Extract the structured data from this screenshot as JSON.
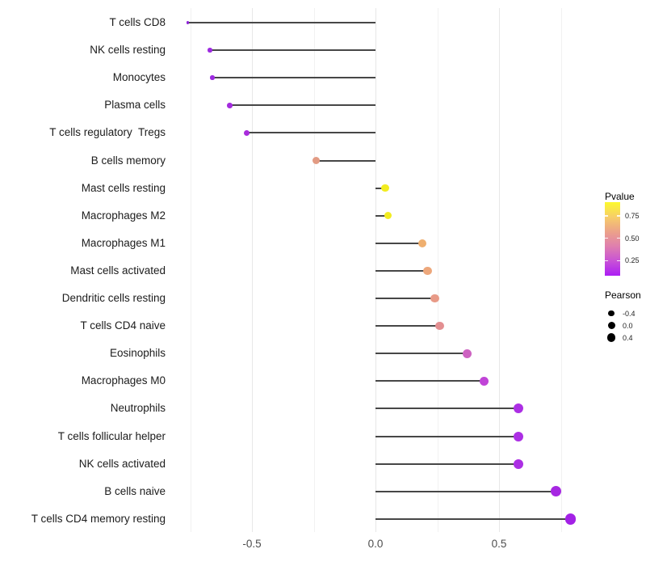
{
  "chart_data": {
    "type": "lollipop",
    "title": "",
    "xlabel": "",
    "ylabel": "",
    "x_axis": {
      "tick_labels": [
        "-0.5",
        "0.0",
        "0.5"
      ],
      "tick_values": [
        -0.5,
        0.0,
        0.5
      ],
      "gridline_values": [
        -0.75,
        -0.5,
        -0.25,
        0.0,
        0.25,
        0.5,
        0.75
      ],
      "range": [
        -0.81,
        0.83
      ]
    },
    "categories": [
      "T cells CD8",
      "NK cells resting",
      "Monocytes",
      "Plasma cells",
      "T cells regulatory  Tregs",
      "B cells memory",
      "Mast cells resting",
      "Macrophages M2",
      "Macrophages M1",
      "Mast cells activated",
      "Dendritic cells resting",
      "T cells CD4 naive",
      "Eosinophils",
      "Macrophages M0",
      "Neutrophils",
      "T cells follicular helper",
      "NK cells activated",
      "B cells naive",
      "T cells CD4 memory resting"
    ],
    "series": [
      {
        "name": "Pearson correlation",
        "values": [
          -0.76,
          -0.67,
          -0.66,
          -0.59,
          -0.52,
          -0.24,
          0.04,
          0.05,
          0.19,
          0.21,
          0.24,
          0.26,
          0.37,
          0.44,
          0.58,
          0.58,
          0.58,
          0.73,
          0.79
        ]
      }
    ],
    "points": [
      {
        "label": "T cells CD8",
        "pearson": -0.76,
        "dot_color": "#8E24D8",
        "dot_size": 3.5
      },
      {
        "label": "NK cells resting",
        "pearson": -0.67,
        "dot_color": "#9D2BE0",
        "dot_size": 5.5
      },
      {
        "label": "Monocytes",
        "pearson": -0.66,
        "dot_color": "#9D2BE0",
        "dot_size": 5.5
      },
      {
        "label": "Plasma cells",
        "pearson": -0.59,
        "dot_color": "#A42BDE",
        "dot_size": 6.5
      },
      {
        "label": "T cells regulatory  Tregs",
        "pearson": -0.52,
        "dot_color": "#A92BDC",
        "dot_size": 7
      },
      {
        "label": "B cells memory",
        "pearson": -0.24,
        "dot_color": "#E29B83",
        "dot_size": 9
      },
      {
        "label": "Mast cells resting",
        "pearson": 0.04,
        "dot_color": "#F2EC20",
        "dot_size": 9.5
      },
      {
        "label": "Macrophages M2",
        "pearson": 0.05,
        "dot_color": "#F2EC20",
        "dot_size": 9.5
      },
      {
        "label": "Macrophages M1",
        "pearson": 0.19,
        "dot_color": "#EFAF6F",
        "dot_size": 10
      },
      {
        "label": "Mast cells activated",
        "pearson": 0.21,
        "dot_color": "#EDA77B",
        "dot_size": 10.5
      },
      {
        "label": "Dendritic cells resting",
        "pearson": 0.24,
        "dot_color": "#E89A87",
        "dot_size": 10.5
      },
      {
        "label": "T cells CD4 naive",
        "pearson": 0.26,
        "dot_color": "#E38F91",
        "dot_size": 10.5
      },
      {
        "label": "Eosinophils",
        "pearson": 0.37,
        "dot_color": "#CD62C1",
        "dot_size": 11
      },
      {
        "label": "Macrophages M0",
        "pearson": 0.44,
        "dot_color": "#C044D7",
        "dot_size": 11.5
      },
      {
        "label": "Neutrophils",
        "pearson": 0.58,
        "dot_color": "#AC2FE4",
        "dot_size": 12
      },
      {
        "label": "T cells follicular helper",
        "pearson": 0.58,
        "dot_color": "#AC2FE4",
        "dot_size": 12
      },
      {
        "label": "NK cells activated",
        "pearson": 0.58,
        "dot_color": "#AC2FE4",
        "dot_size": 12
      },
      {
        "label": "B cells naive",
        "pearson": 0.73,
        "dot_color": "#A627E2",
        "dot_size": 13
      },
      {
        "label": "T cells CD4 memory resting",
        "pearson": 0.79,
        "dot_color": "#A321E6",
        "dot_size": 13.5
      }
    ],
    "legends": {
      "pvalue": {
        "title": "Pvalue",
        "tick_labels": [
          "0.75",
          "0.50",
          "0.25"
        ],
        "tick_values": [
          0.75,
          0.5,
          0.25
        ],
        "bar_domain": [
          0.08,
          0.905
        ],
        "gradient_top_to_bottom": [
          "#FCF92D",
          "#F7CE68",
          "#ECA289",
          "#DF7FAE",
          "#C852D6",
          "#AC1EF4"
        ]
      },
      "pearson": {
        "title": "Pearson",
        "dot_color": "#000000",
        "items": [
          {
            "label": "-0.4",
            "size": 7.5
          },
          {
            "label": "0.0",
            "size": 9
          },
          {
            "label": "0.4",
            "size": 10.5
          }
        ]
      }
    },
    "style_colors": {
      "stem": "#474747",
      "grid_minor": "#f1f1f1",
      "grid_major": "#e7e7e7",
      "background": "#ffffff"
    }
  }
}
